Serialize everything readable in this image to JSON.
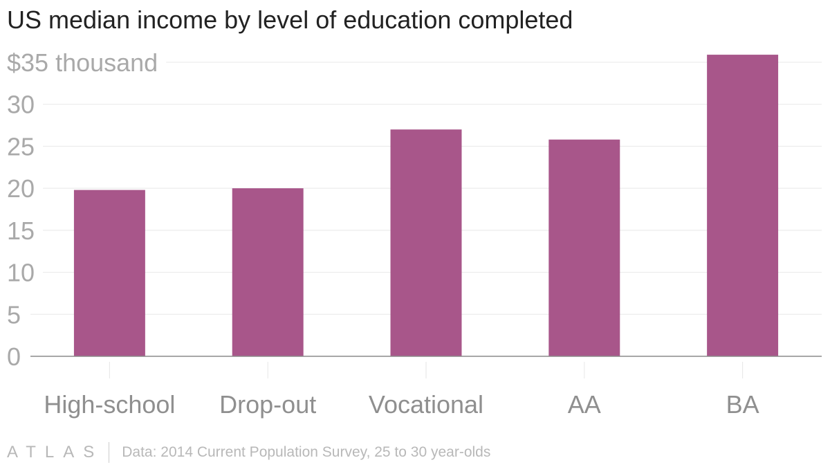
{
  "title": "US median income by level of education completed",
  "chart_data": {
    "type": "bar",
    "categories": [
      "High-school",
      "Drop-out",
      "Vocational",
      "AA",
      "BA"
    ],
    "values": [
      19.8,
      20.0,
      27.0,
      25.8,
      35.9
    ],
    "ylim": [
      0,
      35
    ],
    "yticks": [
      0,
      5,
      10,
      15,
      20,
      25,
      30,
      35
    ],
    "ytick_labels": [
      "0",
      "5",
      "10",
      "15",
      "20",
      "25",
      "30",
      "$35 thousand"
    ],
    "grid": true,
    "bar_color": "#a8568a"
  },
  "footer": {
    "logo": "ATLAS",
    "source": "Data: 2014 Current Population Survey, 25 to 30 year-olds"
  }
}
